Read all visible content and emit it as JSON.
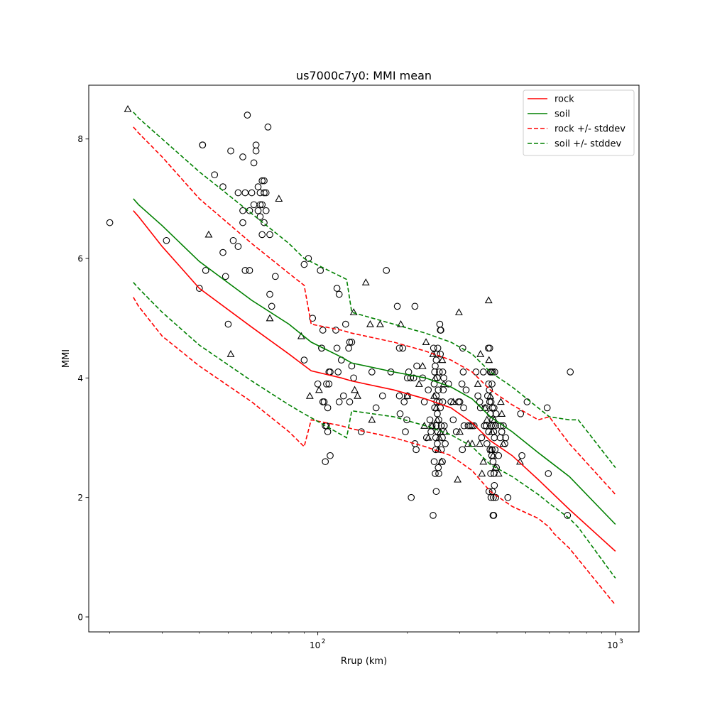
{
  "chart_data": {
    "type": "scatter",
    "title": "us7000c7y0: MMI mean",
    "xlabel": "Rrup (km)",
    "ylabel": "MMI",
    "xscale": "log",
    "xlim": [
      17,
      1200
    ],
    "ylim": [
      -0.25,
      8.9
    ],
    "grid": false,
    "legend_position": "top-right",
    "x_ticks": [
      {
        "value": 100,
        "label": "10",
        "exp": "2"
      },
      {
        "value": 1000,
        "label": "10",
        "exp": "3"
      }
    ],
    "y_ticks": [
      {
        "value": 0,
        "label": "0"
      },
      {
        "value": 2,
        "label": "2"
      },
      {
        "value": 4,
        "label": "4"
      },
      {
        "value": 6,
        "label": "6"
      },
      {
        "value": 8,
        "label": "8"
      }
    ],
    "series": [
      {
        "name": "rock",
        "color": "#ff0000",
        "dash": "solid",
        "x": [
          24,
          25,
          30,
          40,
          60,
          80,
          95,
          120,
          130,
          180,
          230,
          280,
          330,
          380,
          450,
          550,
          700,
          1000
        ],
        "y": [
          6.8,
          6.7,
          6.2,
          5.5,
          4.85,
          4.4,
          4.12,
          4.0,
          3.95,
          3.8,
          3.65,
          3.5,
          3.25,
          2.95,
          2.7,
          2.3,
          1.8,
          1.1
        ]
      },
      {
        "name": "soil",
        "color": "#008000",
        "dash": "solid",
        "x": [
          24,
          25,
          30,
          40,
          60,
          80,
          95,
          120,
          130,
          180,
          230,
          280,
          330,
          380,
          450,
          550,
          700,
          1000
        ],
        "y": [
          7.0,
          6.9,
          6.55,
          5.95,
          5.3,
          4.9,
          4.6,
          4.35,
          4.25,
          4.1,
          4.0,
          3.85,
          3.65,
          3.35,
          3.1,
          2.75,
          2.35,
          1.55
        ]
      },
      {
        "name": "rock +/- stddev",
        "color": "#ff0000",
        "dash": "dashed",
        "x": [
          24,
          25,
          30,
          40,
          60,
          80,
          90,
          95,
          120,
          130,
          180,
          230,
          280,
          330,
          380,
          450,
          550,
          600,
          620,
          700,
          1000
        ],
        "y": [
          8.2,
          8.1,
          7.7,
          7.0,
          6.25,
          5.75,
          5.55,
          4.9,
          4.8,
          4.75,
          4.6,
          4.45,
          4.3,
          4.1,
          3.8,
          3.55,
          3.3,
          3.35,
          3.25,
          2.9,
          2.05
        ]
      },
      {
        "name": "",
        "color": "#ff0000",
        "dash": "dashed",
        "x": [
          24,
          25,
          30,
          40,
          60,
          80,
          90,
          95,
          120,
          130,
          180,
          230,
          280,
          330,
          380,
          450,
          550,
          600,
          620,
          700,
          1000
        ],
        "y": [
          5.35,
          5.2,
          4.7,
          4.2,
          3.6,
          3.1,
          2.85,
          3.3,
          3.2,
          3.15,
          3.0,
          2.85,
          2.7,
          2.45,
          2.1,
          1.85,
          1.65,
          1.5,
          1.4,
          1.15,
          0.2
        ]
      },
      {
        "name": "soil +/- stddev",
        "color": "#008000",
        "dash": "dashed",
        "x": [
          24,
          25,
          30,
          40,
          60,
          80,
          90,
          125,
          130,
          180,
          230,
          280,
          330,
          380,
          450,
          550,
          600,
          700,
          750,
          1000
        ],
        "y": [
          8.45,
          8.35,
          8.0,
          7.45,
          6.75,
          6.25,
          6.0,
          5.65,
          5.1,
          4.9,
          4.75,
          4.6,
          4.4,
          4.1,
          3.85,
          3.5,
          3.35,
          3.3,
          3.3,
          2.5
        ]
      },
      {
        "name": "",
        "color": "#008000",
        "dash": "dashed",
        "x": [
          24,
          25,
          30,
          40,
          60,
          80,
          90,
          125,
          130,
          180,
          230,
          280,
          330,
          380,
          450,
          550,
          600,
          700,
          750,
          1000
        ],
        "y": [
          5.6,
          5.5,
          5.1,
          4.55,
          3.95,
          3.55,
          3.4,
          3.0,
          3.45,
          3.35,
          3.2,
          3.05,
          2.85,
          2.55,
          2.35,
          2.05,
          1.9,
          1.65,
          1.5,
          0.65
        ]
      }
    ],
    "legend": [
      {
        "label": "rock",
        "color": "#ff0000",
        "dash": "solid"
      },
      {
        "label": "soil",
        "color": "#008000",
        "dash": "solid"
      },
      {
        "label": "rock +/- stddev",
        "color": "#ff0000",
        "dash": "dashed"
      },
      {
        "label": "soil +/- stddev",
        "color": "#008000",
        "dash": "dashed"
      }
    ],
    "observations_circle": [
      [
        20,
        6.6
      ],
      [
        31,
        6.3
      ],
      [
        40,
        5.5
      ],
      [
        41,
        7.9
      ],
      [
        41,
        7.9
      ],
      [
        42,
        5.8
      ],
      [
        45,
        7.4
      ],
      [
        48,
        6.1
      ],
      [
        48,
        7.2
      ],
      [
        49,
        5.7
      ],
      [
        51,
        7.8
      ],
      [
        50,
        4.9
      ],
      [
        52,
        6.3
      ],
      [
        54,
        6.2
      ],
      [
        54,
        7.1
      ],
      [
        56,
        7.7
      ],
      [
        56,
        6.6
      ],
      [
        56,
        6.8
      ],
      [
        57,
        5.8
      ],
      [
        57,
        7.1
      ],
      [
        58,
        8.4
      ],
      [
        59,
        6.8
      ],
      [
        59,
        5.8
      ],
      [
        60,
        7.1
      ],
      [
        61,
        7.6
      ],
      [
        61,
        6.9
      ],
      [
        62,
        7.8
      ],
      [
        62,
        7.9
      ],
      [
        63,
        7.2
      ],
      [
        63,
        6.8
      ],
      [
        64,
        6.9
      ],
      [
        64,
        7.1
      ],
      [
        64,
        6.7
      ],
      [
        65,
        6.9
      ],
      [
        65,
        7.3
      ],
      [
        65,
        6.4
      ],
      [
        66,
        7.1
      ],
      [
        66,
        7.3
      ],
      [
        66,
        6.6
      ],
      [
        67,
        7.1
      ],
      [
        67,
        6.8
      ],
      [
        68,
        8.2
      ],
      [
        69,
        5.4
      ],
      [
        69,
        6.4
      ],
      [
        70,
        5.2
      ],
      [
        72,
        5.7
      ],
      [
        90,
        5.9
      ],
      [
        90,
        4.3
      ],
      [
        93,
        6.0
      ],
      [
        96,
        5.0
      ],
      [
        100,
        3.9
      ],
      [
        102,
        5.8
      ],
      [
        103,
        4.5
      ],
      [
        103,
        4.5
      ],
      [
        104,
        4.8
      ],
      [
        104,
        3.6
      ],
      [
        105,
        3.6
      ],
      [
        106,
        3.2
      ],
      [
        106,
        2.6
      ],
      [
        107,
        3.2
      ],
      [
        107,
        3.9
      ],
      [
        108,
        3.5
      ],
      [
        108,
        3.1
      ],
      [
        109,
        3.9
      ],
      [
        109,
        4.1
      ],
      [
        110,
        2.7
      ],
      [
        110,
        4.1
      ],
      [
        115,
        4.8
      ],
      [
        116,
        4.5
      ],
      [
        116,
        5.5
      ],
      [
        117,
        4.1
      ],
      [
        118,
        5.4
      ],
      [
        118,
        3.6
      ],
      [
        120,
        4.3
      ],
      [
        122,
        3.7
      ],
      [
        124,
        4.9
      ],
      [
        127,
        4.5
      ],
      [
        128,
        3.6
      ],
      [
        128,
        4.6
      ],
      [
        130,
        4.2
      ],
      [
        130,
        4.6
      ],
      [
        132,
        4.0
      ],
      [
        140,
        3.1
      ],
      [
        152,
        4.1
      ],
      [
        157,
        3.5
      ],
      [
        165,
        3.7
      ],
      [
        170,
        5.8
      ],
      [
        176,
        4.1
      ],
      [
        185,
        5.2
      ],
      [
        188,
        4.5
      ],
      [
        188,
        3.7
      ],
      [
        189,
        3.4
      ],
      [
        193,
        4.5
      ],
      [
        195,
        3.6
      ],
      [
        197,
        3.1
      ],
      [
        199,
        3.3
      ],
      [
        200,
        4.0
      ],
      [
        200,
        3.7
      ],
      [
        202,
        4.1
      ],
      [
        205,
        4.0
      ],
      [
        206,
        2.0
      ],
      [
        210,
        4.0
      ],
      [
        212,
        5.2
      ],
      [
        212,
        2.9
      ],
      [
        214,
        2.8
      ],
      [
        215,
        4.2
      ],
      [
        225,
        4.0
      ],
      [
        228,
        3.6
      ],
      [
        232,
        3.0
      ],
      [
        235,
        3.8
      ],
      [
        238,
        3.3
      ],
      [
        240,
        3.1
      ],
      [
        242,
        3.2
      ],
      [
        244,
        1.7
      ],
      [
        245,
        4.5
      ],
      [
        246,
        3.9
      ],
      [
        246,
        2.6
      ],
      [
        247,
        4.1
      ],
      [
        247,
        3.5
      ],
      [
        248,
        4.2
      ],
      [
        248,
        2.4
      ],
      [
        249,
        3.0
      ],
      [
        249,
        2.8
      ],
      [
        250,
        4.3
      ],
      [
        250,
        3.7
      ],
      [
        250,
        3.2
      ],
      [
        250,
        2.1
      ],
      [
        251,
        4.4
      ],
      [
        251,
        3.6
      ],
      [
        252,
        4.0
      ],
      [
        252,
        3.4
      ],
      [
        252,
        2.9
      ],
      [
        253,
        4.5
      ],
      [
        253,
        3.1
      ],
      [
        254,
        3.8
      ],
      [
        254,
        2.5
      ],
      [
        255,
        3.3
      ],
      [
        255,
        2.4
      ],
      [
        256,
        4.1
      ],
      [
        256,
        3.6
      ],
      [
        257,
        4.9
      ],
      [
        258,
        4.8
      ],
      [
        258,
        4.4
      ],
      [
        258,
        3.5
      ],
      [
        259,
        4.8
      ],
      [
        260,
        3.2
      ],
      [
        260,
        2.8
      ],
      [
        262,
        3.0
      ],
      [
        262,
        2.6
      ],
      [
        263,
        4.1
      ],
      [
        263,
        3.6
      ],
      [
        264,
        3.8
      ],
      [
        265,
        4.0
      ],
      [
        266,
        3.2
      ],
      [
        268,
        2.9
      ],
      [
        275,
        3.9
      ],
      [
        280,
        3.6
      ],
      [
        285,
        3.3
      ],
      [
        292,
        3.1
      ],
      [
        297,
        3.6
      ],
      [
        300,
        3.6
      ],
      [
        305,
        3.9
      ],
      [
        306,
        2.8
      ],
      [
        307,
        4.5
      ],
      [
        308,
        4.1
      ],
      [
        309,
        3.5
      ],
      [
        310,
        3.2
      ],
      [
        315,
        3.8
      ],
      [
        320,
        3.2
      ],
      [
        325,
        3.2
      ],
      [
        330,
        3.2
      ],
      [
        335,
        3.2
      ],
      [
        340,
        4.1
      ],
      [
        345,
        3.7
      ],
      [
        350,
        3.6
      ],
      [
        352,
        3.5
      ],
      [
        355,
        3.0
      ],
      [
        360,
        4.1
      ],
      [
        363,
        3.2
      ],
      [
        365,
        3.5
      ],
      [
        368,
        3.2
      ],
      [
        370,
        2.9
      ],
      [
        372,
        3.7
      ],
      [
        374,
        4.5
      ],
      [
        375,
        3.9
      ],
      [
        375,
        3.1
      ],
      [
        376,
        2.1
      ],
      [
        377,
        3.8
      ],
      [
        378,
        4.5
      ],
      [
        378,
        3.6
      ],
      [
        379,
        2.8
      ],
      [
        380,
        4.1
      ],
      [
        380,
        3.4
      ],
      [
        381,
        2.4
      ],
      [
        382,
        3.6
      ],
      [
        382,
        2.0
      ],
      [
        383,
        4.1
      ],
      [
        383,
        3.2
      ],
      [
        384,
        2.7
      ],
      [
        385,
        3.9
      ],
      [
        385,
        2.8
      ],
      [
        386,
        3.5
      ],
      [
        386,
        2.1
      ],
      [
        387,
        4.1
      ],
      [
        387,
        3.3
      ],
      [
        388,
        2.6
      ],
      [
        388,
        1.7
      ],
      [
        389,
        3.2
      ],
      [
        389,
        2.0
      ],
      [
        390,
        3.1
      ],
      [
        390,
        1.7
      ],
      [
        391,
        3.5
      ],
      [
        391,
        2.4
      ],
      [
        392,
        3.0
      ],
      [
        392,
        2.2
      ],
      [
        393,
        4.1
      ],
      [
        394,
        2.8
      ],
      [
        395,
        3.2
      ],
      [
        396,
        2.0
      ],
      [
        397,
        3.4
      ],
      [
        398,
        2.5
      ],
      [
        405,
        2.7
      ],
      [
        410,
        3.0
      ],
      [
        412,
        3.2
      ],
      [
        415,
        3.1
      ],
      [
        420,
        3.2
      ],
      [
        425,
        2.9
      ],
      [
        428,
        3.0
      ],
      [
        435,
        2.0
      ],
      [
        480,
        3.4
      ],
      [
        485,
        2.7
      ],
      [
        505,
        3.6
      ],
      [
        590,
        3.5
      ],
      [
        595,
        2.4
      ],
      [
        690,
        1.7
      ],
      [
        705,
        4.1
      ]
    ],
    "observations_triangle": [
      [
        23,
        8.5
      ],
      [
        43,
        6.4
      ],
      [
        51,
        4.4
      ],
      [
        69,
        5.0
      ],
      [
        74,
        7.0
      ],
      [
        88,
        4.7
      ],
      [
        94,
        3.7
      ],
      [
        101,
        3.8
      ],
      [
        132,
        5.1
      ],
      [
        133,
        3.8
      ],
      [
        136,
        3.7
      ],
      [
        145,
        5.6
      ],
      [
        150,
        4.9
      ],
      [
        152,
        3.3
      ],
      [
        162,
        4.9
      ],
      [
        190,
        4.9
      ],
      [
        200,
        3.7
      ],
      [
        219,
        3.9
      ],
      [
        225,
        4.2
      ],
      [
        228,
        3.2
      ],
      [
        231,
        4.6
      ],
      [
        235,
        3.0
      ],
      [
        242,
        3.2
      ],
      [
        244,
        4.4
      ],
      [
        246,
        3.7
      ],
      [
        248,
        4.0
      ],
      [
        250,
        3.5
      ],
      [
        252,
        3.3
      ],
      [
        254,
        2.8
      ],
      [
        256,
        3.0
      ],
      [
        258,
        3.1
      ],
      [
        260,
        2.6
      ],
      [
        262,
        4.3
      ],
      [
        265,
        3.9
      ],
      [
        268,
        3.1
      ],
      [
        285,
        3.6
      ],
      [
        295,
        2.3
      ],
      [
        298,
        5.1
      ],
      [
        300,
        3.1
      ],
      [
        320,
        2.9
      ],
      [
        330,
        2.9
      ],
      [
        345,
        3.9
      ],
      [
        350,
        2.9
      ],
      [
        352,
        4.4
      ],
      [
        356,
        2.4
      ],
      [
        360,
        2.6
      ],
      [
        365,
        3.5
      ],
      [
        370,
        3.3
      ],
      [
        375,
        5.3
      ],
      [
        376,
        4.3
      ],
      [
        380,
        3.7
      ],
      [
        382,
        2.8
      ],
      [
        385,
        3.1
      ],
      [
        388,
        2.7
      ],
      [
        392,
        3.3
      ],
      [
        395,
        2.5
      ],
      [
        405,
        2.4
      ],
      [
        412,
        3.6
      ],
      [
        415,
        3.4
      ],
      [
        420,
        2.9
      ],
      [
        478,
        2.6
      ]
    ]
  }
}
